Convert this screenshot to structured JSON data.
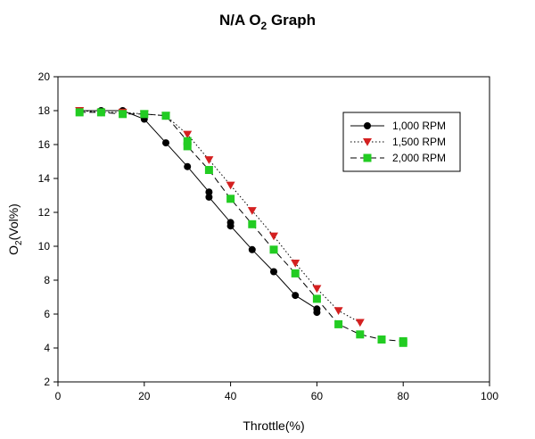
{
  "chart_data": {
    "type": "line",
    "title": "N/A O",
    "title_subscript": "2",
    "title_suffix": " Graph",
    "xlabel": "Throttle(%)",
    "ylabel": "O",
    "ylabel_subscript": "2",
    "ylabel_suffix": "(Vol%)",
    "xlim": [
      0,
      100
    ],
    "ylim": [
      2,
      20
    ],
    "xticks": [
      0,
      20,
      40,
      60,
      80,
      100
    ],
    "yticks": [
      2,
      4,
      6,
      8,
      10,
      12,
      14,
      16,
      18,
      20
    ],
    "grid": false,
    "legend_position": "top-right",
    "series": [
      {
        "name": "1,000 RPM",
        "color": "#000000",
        "marker": "circle",
        "line": "solid",
        "x": [
          5,
          10,
          15,
          20,
          25,
          30,
          35,
          35,
          40,
          40,
          45,
          50,
          55,
          60,
          60
        ],
        "y": [
          18.0,
          18.0,
          18.0,
          17.5,
          16.1,
          14.7,
          13.2,
          12.9,
          11.4,
          11.2,
          9.8,
          8.5,
          7.1,
          6.3,
          6.1
        ]
      },
      {
        "name": "1,500 RPM",
        "color": "#d42020",
        "marker": "triangle-down",
        "line": "dotted",
        "x": [
          5,
          10,
          15,
          20,
          25,
          30,
          35,
          40,
          45,
          50,
          55,
          60,
          65,
          70
        ],
        "y": [
          18.0,
          17.9,
          17.9,
          17.8,
          17.7,
          16.6,
          15.1,
          13.6,
          12.1,
          10.6,
          9.0,
          7.5,
          6.2,
          5.5
        ]
      },
      {
        "name": "2,000 RPM",
        "color": "#22cc22",
        "marker": "square",
        "line": "dashed",
        "x": [
          5,
          10,
          15,
          20,
          25,
          30,
          30,
          35,
          40,
          45,
          50,
          55,
          60,
          65,
          70,
          75,
          80,
          80
        ],
        "y": [
          17.9,
          17.9,
          17.8,
          17.8,
          17.7,
          16.2,
          15.9,
          14.5,
          12.8,
          11.3,
          9.8,
          8.4,
          6.9,
          5.4,
          4.8,
          4.5,
          4.4,
          4.3
        ]
      }
    ]
  }
}
